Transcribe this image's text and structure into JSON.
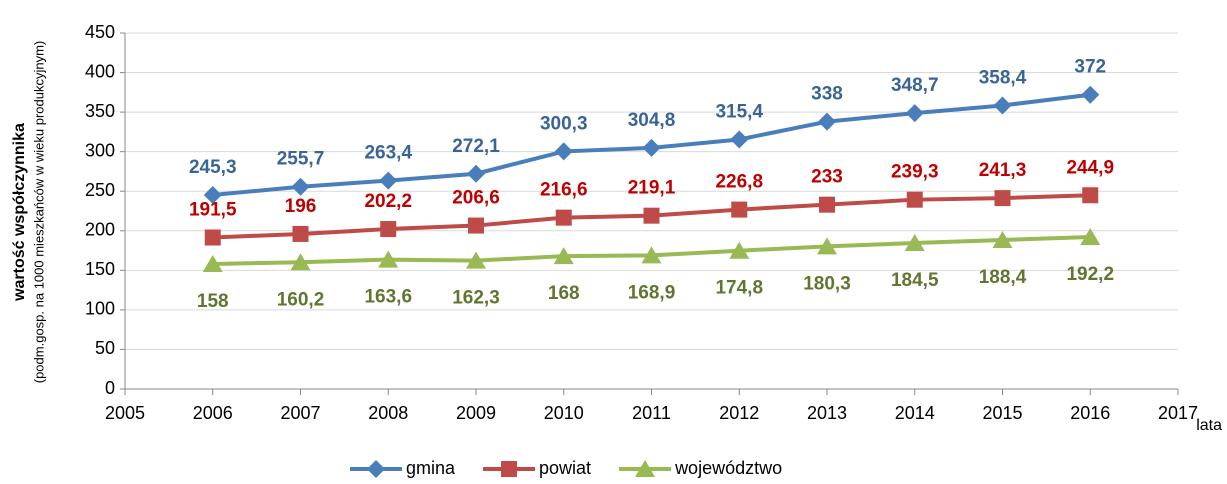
{
  "chart_data": {
    "type": "line",
    "y_label": [
      "wartość współczynnika",
      "(podm.gosp. na 1000 mieszkańców w wieku produkcyjnym)"
    ],
    "x_label": "lata",
    "x": [
      2006,
      2007,
      2008,
      2009,
      2010,
      2011,
      2012,
      2013,
      2014,
      2015,
      2016
    ],
    "xlim": [
      2005,
      2017
    ],
    "xticks": [
      2005,
      2006,
      2007,
      2008,
      2009,
      2010,
      2011,
      2012,
      2013,
      2014,
      2015,
      2016,
      2017
    ],
    "ylim": [
      0,
      450
    ],
    "yticks": [
      0,
      50,
      100,
      150,
      200,
      250,
      300,
      350,
      400,
      450
    ],
    "grid": true,
    "legend": "bottom",
    "series": [
      {
        "name": "gmina",
        "color": "#4a7ebb",
        "label_color": "#3a6496",
        "marker": "diamond",
        "label_position": "above",
        "values": [
          245.3,
          255.7,
          263.4,
          272.1,
          300.3,
          304.8,
          315.4,
          338,
          348.7,
          358.4,
          372
        ],
        "value_labels": [
          "245,3",
          "255,7",
          "263,4",
          "272,1",
          "300,3",
          "304,8",
          "315,4",
          "338",
          "348,7",
          "358,4",
          "372"
        ]
      },
      {
        "name": "powiat",
        "color": "#be4b48",
        "label_color": "#c00000",
        "marker": "square",
        "label_position": "above",
        "values": [
          191.5,
          196,
          202.2,
          206.6,
          216.6,
          219.1,
          226.8,
          233,
          239.3,
          241.3,
          244.9
        ],
        "value_labels": [
          "191,5",
          "196",
          "202,2",
          "206,6",
          "216,6",
          "219,1",
          "226,8",
          "233",
          "239,3",
          "241,3",
          "244,9"
        ]
      },
      {
        "name": "województwo",
        "color": "#98b954",
        "label_color": "#5f7530",
        "marker": "triangle",
        "label_position": "below",
        "values": [
          158,
          160.2,
          163.6,
          162.3,
          168,
          168.9,
          174.8,
          180.3,
          184.5,
          188.4,
          192.2
        ],
        "value_labels": [
          "158",
          "160,2",
          "163,6",
          "162,3",
          "168",
          "168,9",
          "174,8",
          "180,3",
          "184,5",
          "188,4",
          "192,2"
        ]
      }
    ]
  }
}
